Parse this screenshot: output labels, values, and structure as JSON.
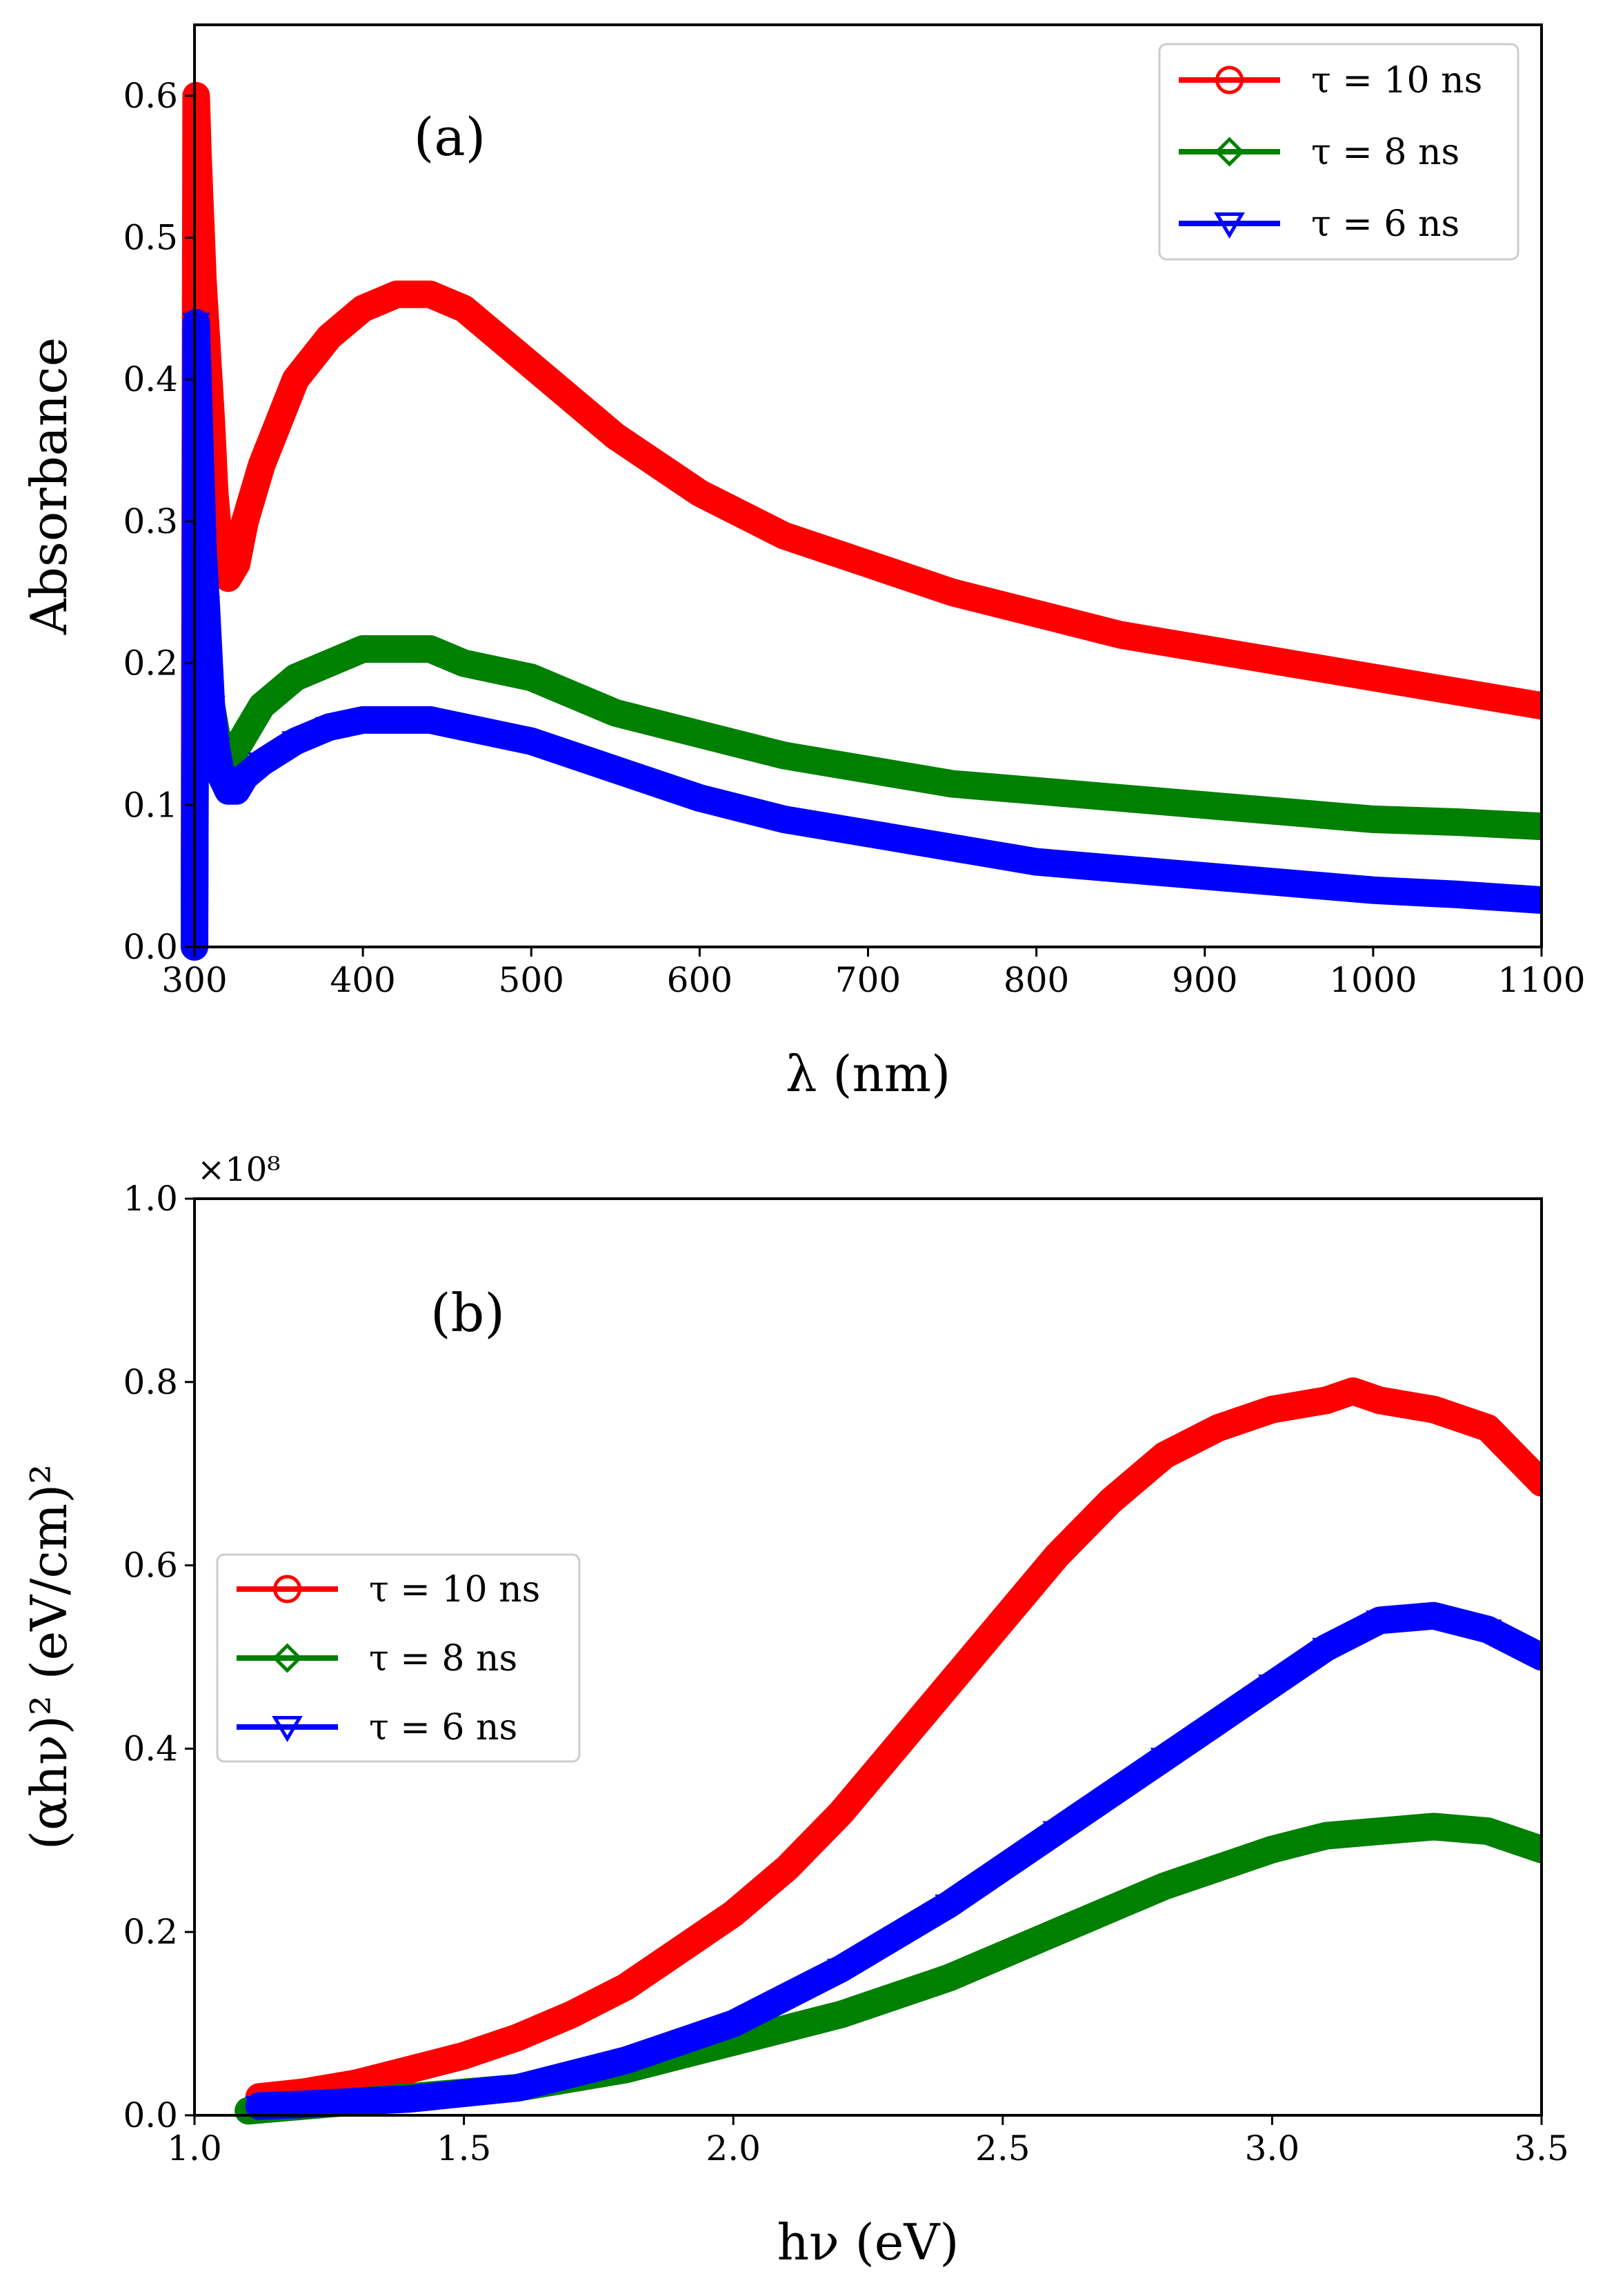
{
  "chart_data": [
    {
      "id": "a",
      "type": "line",
      "panel_label": "(a)",
      "xlabel": "λ (nm)",
      "ylabel": "Absorbance",
      "xlim": [
        300,
        1100
      ],
      "ylim": [
        0.0,
        0.65
      ],
      "xticks": [
        "300",
        "400",
        "500",
        "600",
        "700",
        "800",
        "900",
        "1000",
        "1100"
      ],
      "yticks": [
        "0.0",
        "0.1",
        "0.2",
        "0.3",
        "0.4",
        "0.5",
        "0.6"
      ],
      "legend_position": "top-right",
      "series": [
        {
          "name": "τ = 10 ns",
          "color": "#ff0000",
          "marker": "circle",
          "x": [
            300,
            301,
            302,
            303,
            304,
            305,
            306,
            307,
            308,
            309,
            310,
            312,
            315,
            320,
            325,
            330,
            340,
            350,
            360,
            380,
            400,
            420,
            440,
            460,
            480,
            500,
            550,
            600,
            650,
            700,
            750,
            800,
            850,
            900,
            950,
            1000,
            1050,
            1100
          ],
          "y": [
            0.05,
            0.6,
            0.56,
            0.53,
            0.5,
            0.47,
            0.45,
            0.43,
            0.41,
            0.39,
            0.37,
            0.32,
            0.28,
            0.26,
            0.27,
            0.3,
            0.34,
            0.37,
            0.4,
            0.43,
            0.45,
            0.46,
            0.46,
            0.45,
            0.43,
            0.41,
            0.36,
            0.32,
            0.29,
            0.27,
            0.25,
            0.235,
            0.22,
            0.21,
            0.2,
            0.19,
            0.18,
            0.17
          ]
        },
        {
          "name": "τ = 8 ns",
          "color": "#008000",
          "marker": "diamond",
          "x": [
            300,
            301,
            302,
            303,
            305,
            307,
            310,
            313,
            316,
            320,
            330,
            340,
            360,
            380,
            400,
            420,
            440,
            460,
            500,
            550,
            600,
            650,
            700,
            750,
            800,
            850,
            900,
            950,
            1000,
            1050,
            1100
          ],
          "y": [
            0.02,
            0.33,
            0.3,
            0.27,
            0.24,
            0.2,
            0.17,
            0.15,
            0.14,
            0.13,
            0.15,
            0.17,
            0.19,
            0.2,
            0.21,
            0.21,
            0.21,
            0.2,
            0.19,
            0.165,
            0.15,
            0.135,
            0.125,
            0.115,
            0.11,
            0.105,
            0.1,
            0.095,
            0.09,
            0.088,
            0.085
          ]
        },
        {
          "name": "τ = 6 ns",
          "color": "#0000ff",
          "marker": "triangle-down",
          "x": [
            300,
            301,
            302,
            303,
            304,
            305,
            307,
            310,
            313,
            316,
            320,
            325,
            330,
            340,
            360,
            380,
            400,
            420,
            440,
            460,
            500,
            550,
            600,
            650,
            700,
            750,
            800,
            850,
            900,
            950,
            1000,
            1050,
            1100
          ],
          "y": [
            0.0,
            0.44,
            0.4,
            0.36,
            0.32,
            0.28,
            0.24,
            0.17,
            0.14,
            0.12,
            0.11,
            0.11,
            0.12,
            0.13,
            0.145,
            0.155,
            0.16,
            0.16,
            0.16,
            0.155,
            0.145,
            0.125,
            0.105,
            0.09,
            0.08,
            0.07,
            0.06,
            0.055,
            0.05,
            0.045,
            0.04,
            0.037,
            0.033
          ]
        }
      ]
    },
    {
      "id": "b",
      "type": "line",
      "panel_label": "(b)",
      "xlabel": "hν (eV)",
      "ylabel": "(αhν)² (eV/cm)²",
      "y_multiplier": "×10⁸",
      "xlim": [
        1.0,
        3.5
      ],
      "ylim": [
        0.0,
        1.0
      ],
      "xticks": [
        "1.0",
        "1.5",
        "2.0",
        "2.5",
        "3.0",
        "3.5"
      ],
      "yticks": [
        "0.0",
        "0.2",
        "0.4",
        "0.6",
        "0.8",
        "1.0"
      ],
      "legend_position": "center-left",
      "series": [
        {
          "name": "τ = 10 ns",
          "color": "#ff0000",
          "marker": "circle",
          "x": [
            1.12,
            1.2,
            1.3,
            1.4,
            1.5,
            1.6,
            1.7,
            1.8,
            1.9,
            2.0,
            2.1,
            2.2,
            2.3,
            2.4,
            2.5,
            2.6,
            2.7,
            2.8,
            2.9,
            3.0,
            3.1,
            3.15,
            3.2,
            3.3,
            3.4,
            3.5
          ],
          "y": [
            0.02,
            0.025,
            0.035,
            0.05,
            0.065,
            0.085,
            0.11,
            0.14,
            0.18,
            0.22,
            0.27,
            0.33,
            0.4,
            0.47,
            0.54,
            0.61,
            0.67,
            0.72,
            0.75,
            0.77,
            0.78,
            0.79,
            0.78,
            0.77,
            0.75,
            0.69
          ]
        },
        {
          "name": "τ = 8 ns",
          "color": "#008000",
          "marker": "diamond",
          "x": [
            1.1,
            1.2,
            1.4,
            1.6,
            1.8,
            2.0,
            2.2,
            2.4,
            2.6,
            2.8,
            3.0,
            3.1,
            3.2,
            3.3,
            3.4,
            3.5
          ],
          "y": [
            0.005,
            0.01,
            0.02,
            0.03,
            0.05,
            0.08,
            0.11,
            0.15,
            0.2,
            0.25,
            0.29,
            0.305,
            0.31,
            0.315,
            0.31,
            0.29
          ]
        },
        {
          "name": "τ = 6 ns",
          "color": "#0000ff",
          "marker": "triangle-down",
          "x": [
            1.12,
            1.2,
            1.4,
            1.6,
            1.8,
            2.0,
            2.2,
            2.4,
            2.6,
            2.8,
            3.0,
            3.1,
            3.2,
            3.3,
            3.4,
            3.5
          ],
          "y": [
            0.01,
            0.012,
            0.018,
            0.03,
            0.06,
            0.1,
            0.16,
            0.23,
            0.31,
            0.39,
            0.47,
            0.51,
            0.54,
            0.545,
            0.53,
            0.5
          ]
        }
      ]
    }
  ]
}
